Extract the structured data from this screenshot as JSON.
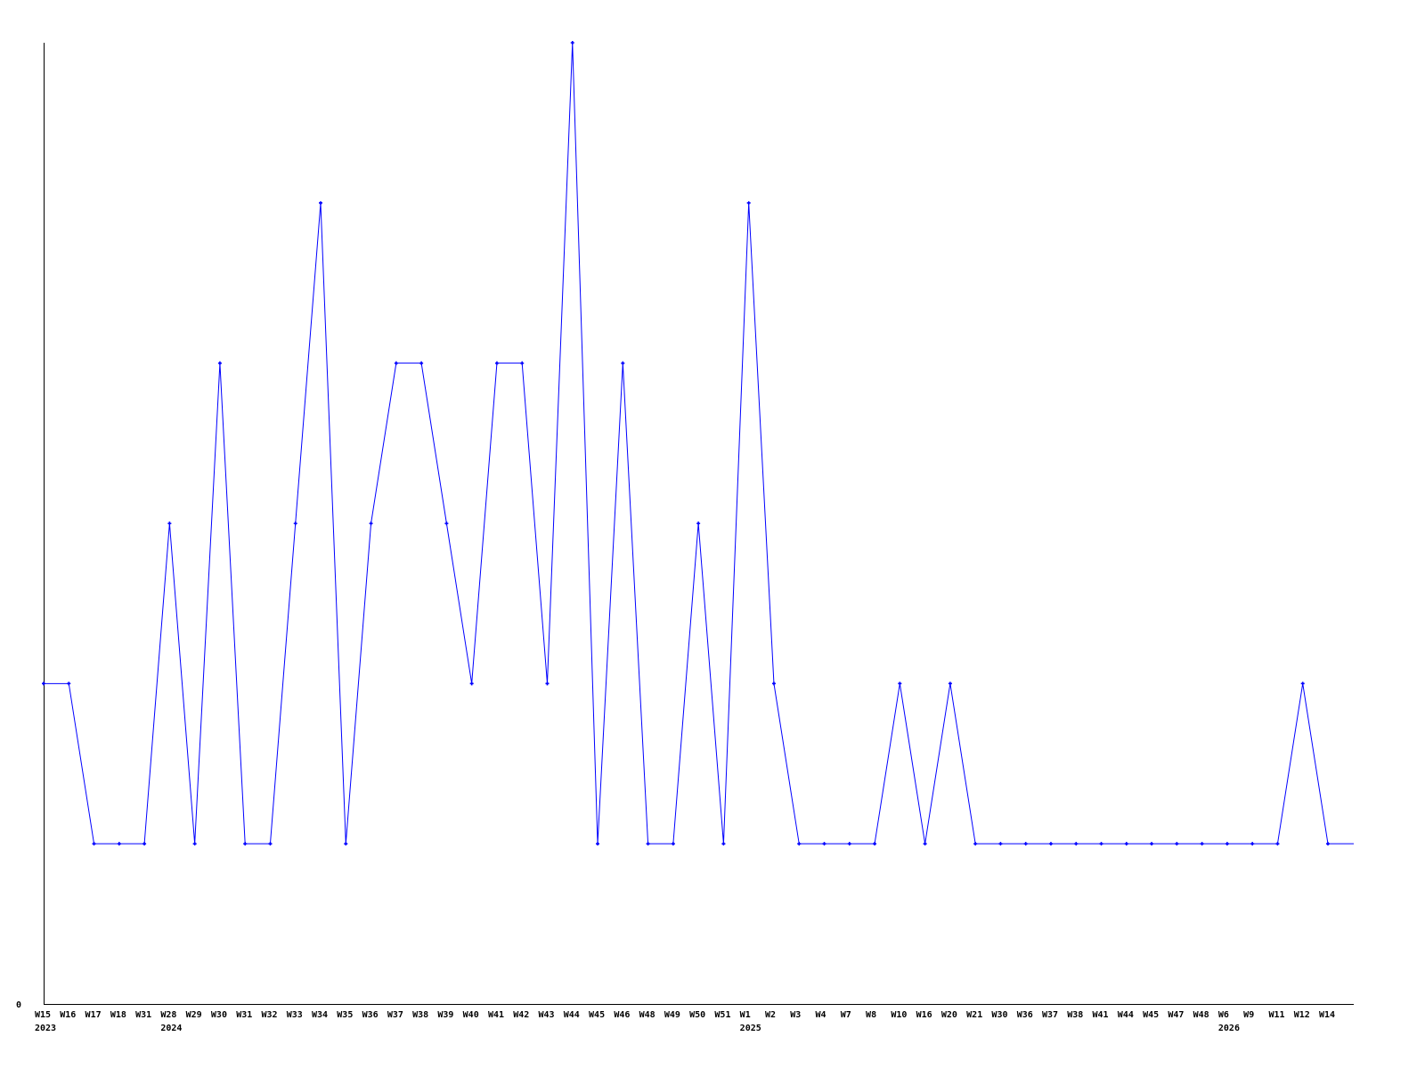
{
  "chart_data": {
    "type": "line",
    "title": "",
    "xlabel": "",
    "ylabel": "",
    "ylim": [
      0,
      6
    ],
    "y_tick_labels": [
      "0"
    ],
    "grid": false,
    "line_color": "#0000ff",
    "categories": [
      "W15",
      "W16",
      "W17",
      "W18",
      "W31",
      "W28",
      "W29",
      "W30",
      "W31",
      "W32",
      "W33",
      "W34",
      "W35",
      "W36",
      "W37",
      "W38",
      "W39",
      "W40",
      "W41",
      "W42",
      "W43",
      "W44",
      "W45",
      "W46",
      "W48",
      "W49",
      "W50",
      "W51",
      "W1",
      "W2",
      "W3",
      "W4",
      "W7",
      "W8",
      "W10",
      "W16",
      "W20",
      "W21",
      "W30",
      "W36",
      "W37",
      "W38",
      "W41",
      "W44",
      "W45",
      "W47",
      "W48",
      "W6",
      "W9",
      "W11",
      "W12",
      "W14"
    ],
    "year_labels": [
      {
        "index": 0,
        "label": "2023"
      },
      {
        "index": 5,
        "label": "2024"
      },
      {
        "index": 28,
        "label": "2025"
      },
      {
        "index": 47,
        "label": "2026"
      }
    ],
    "values": [
      2,
      2,
      1,
      1,
      1,
      3,
      1,
      4,
      1,
      1,
      3,
      5,
      1,
      3,
      4,
      4,
      3,
      2,
      4,
      4,
      2,
      6,
      1,
      4,
      1,
      1,
      3,
      1,
      5,
      2,
      1,
      1,
      1,
      1,
      2,
      1,
      2,
      1,
      1,
      1,
      1,
      1,
      1,
      1,
      1,
      1,
      1,
      1,
      1,
      1,
      2,
      1
    ]
  }
}
